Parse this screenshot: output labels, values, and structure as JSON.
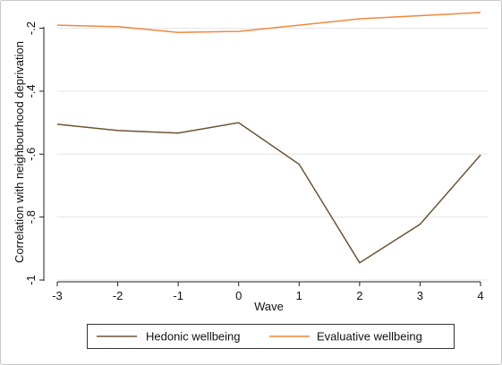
{
  "chart_data": {
    "type": "line",
    "xlabel": "Wave",
    "ylabel": "Correlation with neighbourhood deprivation",
    "x": [
      -3,
      -2,
      -1,
      0,
      1,
      2,
      3,
      4
    ],
    "xlim": [
      -3,
      4
    ],
    "ylim": [
      -1.0,
      -0.15
    ],
    "yticks": [
      -0.2,
      -0.4,
      -0.6,
      -0.8,
      -1.0
    ],
    "ytick_labels": [
      "-.2",
      "-.4",
      "-.6",
      "-.8",
      "-1"
    ],
    "xticks": [
      -3,
      -2,
      -1,
      0,
      1,
      2,
      3,
      4
    ],
    "xtick_labels": [
      "-3",
      "-2",
      "-1",
      "0",
      "1",
      "2",
      "3",
      "4"
    ],
    "grid": true,
    "legend_position": "bottom",
    "series": [
      {
        "name": "Hedonic wellbeing",
        "color": "#6b5433",
        "values": [
          -0.505,
          -0.525,
          -0.533,
          -0.5,
          -0.632,
          -0.945,
          -0.823,
          -0.603
        ]
      },
      {
        "name": "Evaluative wellbeing",
        "color": "#f0883e",
        "values": [
          -0.19,
          -0.195,
          -0.213,
          -0.21,
          -0.19,
          -0.17,
          -0.16,
          -0.15
        ]
      }
    ]
  }
}
